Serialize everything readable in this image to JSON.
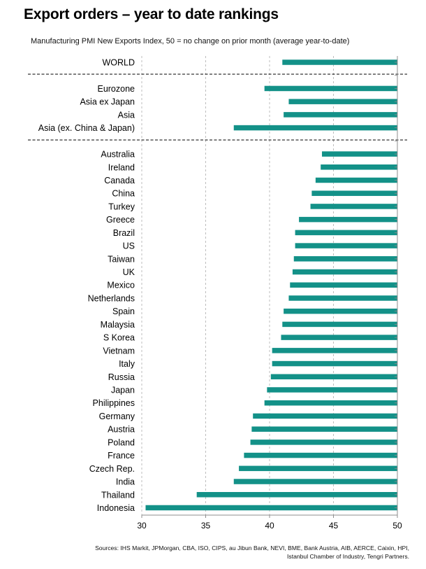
{
  "header": {
    "title": "Export orders – year to date rankings",
    "subtitle": "Manufacturing PMI New Exports Index, 50 = no change on prior month (average year-to-date)"
  },
  "source_lines": [
    "Sources: IHS Markit, JPMorgan, CBA, ISO, CIPS, au Jibun Bank, NEVI, BME, Bank Austria, AIB, AERCE, Caixin, HPI,",
    "Istanbul Chamber of Industry, Tengri Partners."
  ],
  "colors": {
    "bar": "#139188",
    "grid": "#bdbdbd",
    "axis": "#8c8c8c"
  },
  "chart_data": {
    "type": "bar",
    "orientation": "horizontal",
    "bars_extend_from": 50,
    "xlim": [
      30,
      50
    ],
    "xticks": [
      30,
      35,
      40,
      45,
      50
    ],
    "grid": true,
    "groups": [
      {
        "categories": [
          "WORLD"
        ],
        "values": [
          41.0
        ]
      },
      {
        "categories": [
          "Eurozone",
          "Asia ex Japan",
          "Asia",
          "Asia (ex. China & Japan)"
        ],
        "values": [
          39.6,
          41.5,
          41.1,
          37.2
        ]
      },
      {
        "categories": [
          "Australia",
          "Ireland",
          "Canada",
          "China",
          "Turkey",
          "Greece",
          "Brazil",
          "US",
          "Taiwan",
          "UK",
          "Mexico",
          "Netherlands",
          "Spain",
          "Malaysia",
          "S Korea",
          "Vietnam",
          "Italy",
          "Russia",
          "Japan",
          "Philippines",
          "Germany",
          "Austria",
          "Poland",
          "France",
          "Czech Rep.",
          "India",
          "Thailand",
          "Indonesia"
        ],
        "values": [
          44.1,
          44.0,
          43.6,
          43.3,
          43.2,
          42.3,
          42.0,
          42.0,
          41.9,
          41.8,
          41.6,
          41.5,
          41.1,
          41.0,
          40.9,
          40.2,
          40.2,
          40.1,
          39.8,
          39.6,
          38.7,
          38.6,
          38.5,
          38.0,
          37.6,
          37.2,
          34.3,
          30.3
        ]
      }
    ]
  }
}
